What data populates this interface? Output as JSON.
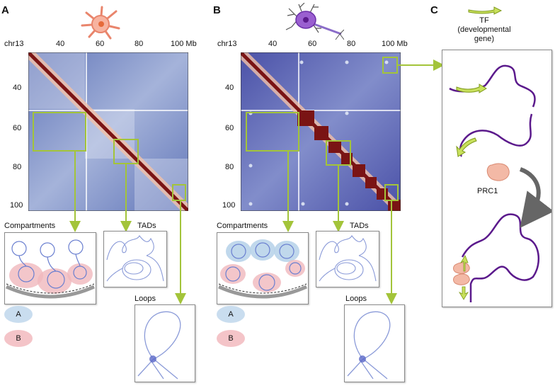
{
  "panels": {
    "a": {
      "letter": "A",
      "chrom": "chr13",
      "xticks": [
        "40",
        "60",
        "80",
        "100 Mb"
      ],
      "yticks": [
        "40",
        "60",
        "80",
        "100"
      ]
    },
    "b": {
      "letter": "B",
      "chrom": "chr13",
      "xticks": [
        "40",
        "60",
        "80",
        "100 Mb"
      ],
      "yticks": [
        "40",
        "60",
        "80",
        "100"
      ]
    },
    "c": {
      "letter": "C",
      "tf_line1": "TF",
      "tf_line2": "(developmental",
      "tf_line3": "gene)",
      "prc1": "PRC1"
    }
  },
  "labels": {
    "compartments": "Compartments",
    "tads": "TADs",
    "loops": "Loops",
    "legend_a": "A",
    "legend_b": "B"
  },
  "colors": {
    "accent_green": "#a3c43a",
    "compartment_a": "#b9d4ea",
    "compartment_b": "#f0b8bd",
    "heatmap_low": "#5a6fb0",
    "heatmap_high": "#7a1414",
    "chain_purple": "#5b1a8c",
    "prc1": "#f3b9a6"
  }
}
